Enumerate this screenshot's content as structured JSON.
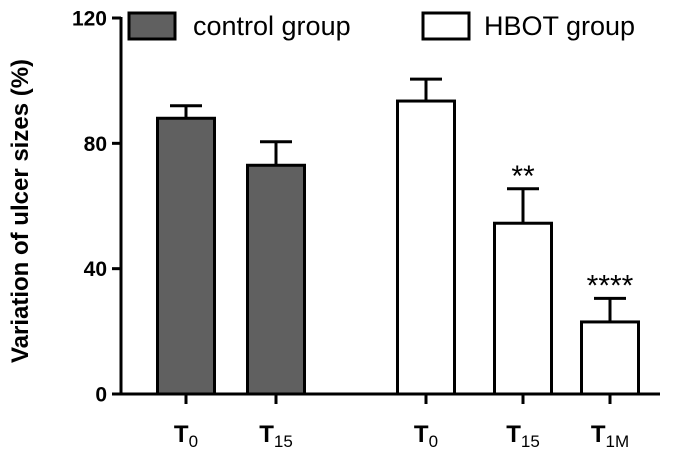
{
  "chart_data": {
    "type": "bar",
    "ylabel": "Variation of ulcer sizes (%)",
    "ylim": [
      0,
      120
    ],
    "yticks": [
      0,
      40,
      80,
      120
    ],
    "legend": {
      "placement": "top"
    },
    "series": [
      {
        "name": "control group",
        "color": "#606060",
        "bars": [
          {
            "label": "T",
            "sub": "0",
            "value": 88,
            "error": 4,
            "sig": ""
          },
          {
            "label": "T",
            "sub": "15",
            "value": 73,
            "error": 7.5,
            "sig": ""
          }
        ]
      },
      {
        "name": "HBOT group",
        "color": "#ffffff",
        "bars": [
          {
            "label": "T",
            "sub": "0",
            "value": 93.5,
            "error": 7,
            "sig": ""
          },
          {
            "label": "T",
            "sub": "15",
            "value": 54.5,
            "error": 11,
            "sig": "**"
          },
          {
            "label": "T",
            "sub": "1M",
            "value": 23,
            "error": 7.5,
            "sig": "****"
          }
        ]
      }
    ]
  }
}
